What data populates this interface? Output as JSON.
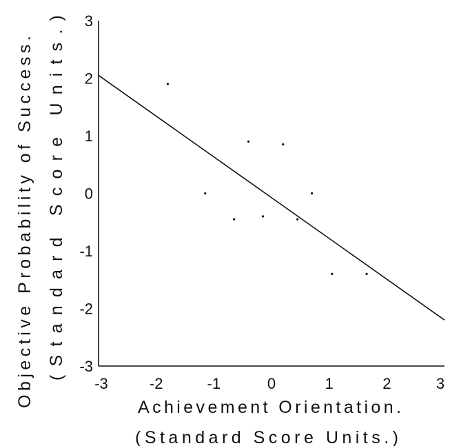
{
  "chart_data": {
    "type": "scatter",
    "title": "",
    "xlabel": [
      "Achievement Orientation.",
      "(Standard Score Units.)"
    ],
    "ylabel": [
      "Objective Probability of Success.",
      "(Standard Score Units.)"
    ],
    "xlim": [
      -3,
      3
    ],
    "ylim": [
      -3,
      3
    ],
    "x_ticks": [
      -3,
      -2,
      -1,
      0,
      1,
      2,
      3
    ],
    "y_ticks": [
      -3,
      -2,
      -1,
      0,
      1,
      2,
      3
    ],
    "x_tick_labels": [
      "-3",
      "-2",
      "-1",
      "0",
      "1",
      "2",
      "3"
    ],
    "y_tick_labels": [
      "-3",
      "-2",
      "-1",
      "0",
      "1",
      "2",
      "3"
    ],
    "grid": false,
    "points": [
      {
        "x": -1.8,
        "y": 1.9
      },
      {
        "x": -1.15,
        "y": 0.0
      },
      {
        "x": -0.65,
        "y": -0.45
      },
      {
        "x": -0.4,
        "y": 0.9
      },
      {
        "x": -0.15,
        "y": -0.4
      },
      {
        "x": 0.2,
        "y": 0.85
      },
      {
        "x": 0.45,
        "y": -0.45
      },
      {
        "x": 0.7,
        "y": 0.0
      },
      {
        "x": 1.05,
        "y": -1.4
      },
      {
        "x": 1.65,
        "y": -1.4
      }
    ],
    "regression_line": {
      "x": [
        -3,
        3
      ],
      "y": [
        2.05,
        -2.2
      ]
    }
  }
}
